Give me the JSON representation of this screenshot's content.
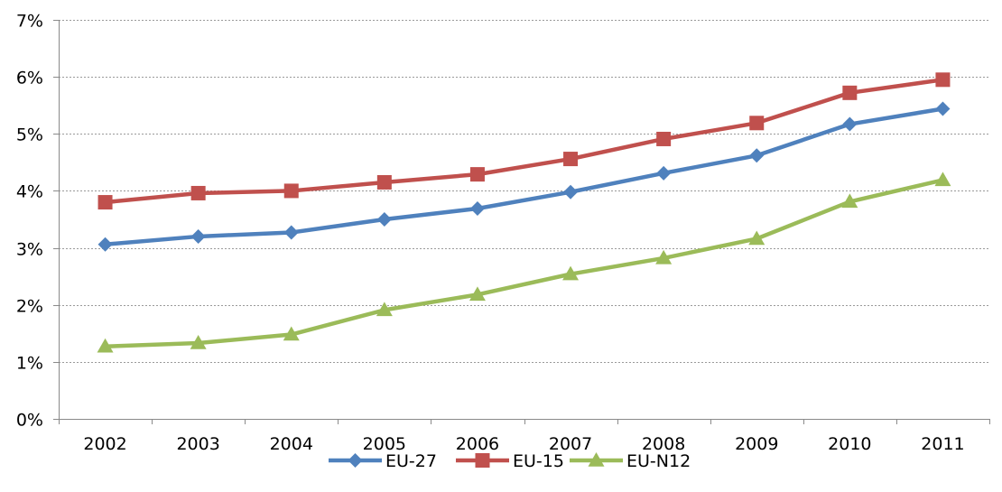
{
  "chart_data": {
    "type": "line",
    "title": "",
    "xlabel": "",
    "ylabel": "",
    "categories": [
      "2002",
      "2003",
      "2004",
      "2005",
      "2006",
      "2007",
      "2008",
      "2009",
      "2010",
      "2011"
    ],
    "ylim": [
      0,
      7
    ],
    "yticks": [
      0,
      1,
      2,
      3,
      4,
      5,
      6,
      7
    ],
    "ytick_labels": [
      "0%",
      "1%",
      "2%",
      "3%",
      "4%",
      "5%",
      "6%",
      "7%"
    ],
    "grid": true,
    "legend_position": "bottom",
    "series": [
      {
        "name": "EU-27",
        "color": "#4F81BD",
        "marker": "diamond",
        "values": [
          3.06,
          3.2,
          3.27,
          3.5,
          3.69,
          3.98,
          4.31,
          4.62,
          5.17,
          5.44
        ]
      },
      {
        "name": "EU-15",
        "color": "#C0504D",
        "marker": "square",
        "values": [
          3.8,
          3.96,
          4.0,
          4.15,
          4.29,
          4.56,
          4.91,
          5.19,
          5.72,
          5.95
        ]
      },
      {
        "name": "EU-N12",
        "color": "#9BBB59",
        "marker": "triangle",
        "values": [
          1.27,
          1.33,
          1.48,
          1.91,
          2.18,
          2.54,
          2.82,
          3.16,
          3.81,
          4.19
        ]
      }
    ]
  }
}
